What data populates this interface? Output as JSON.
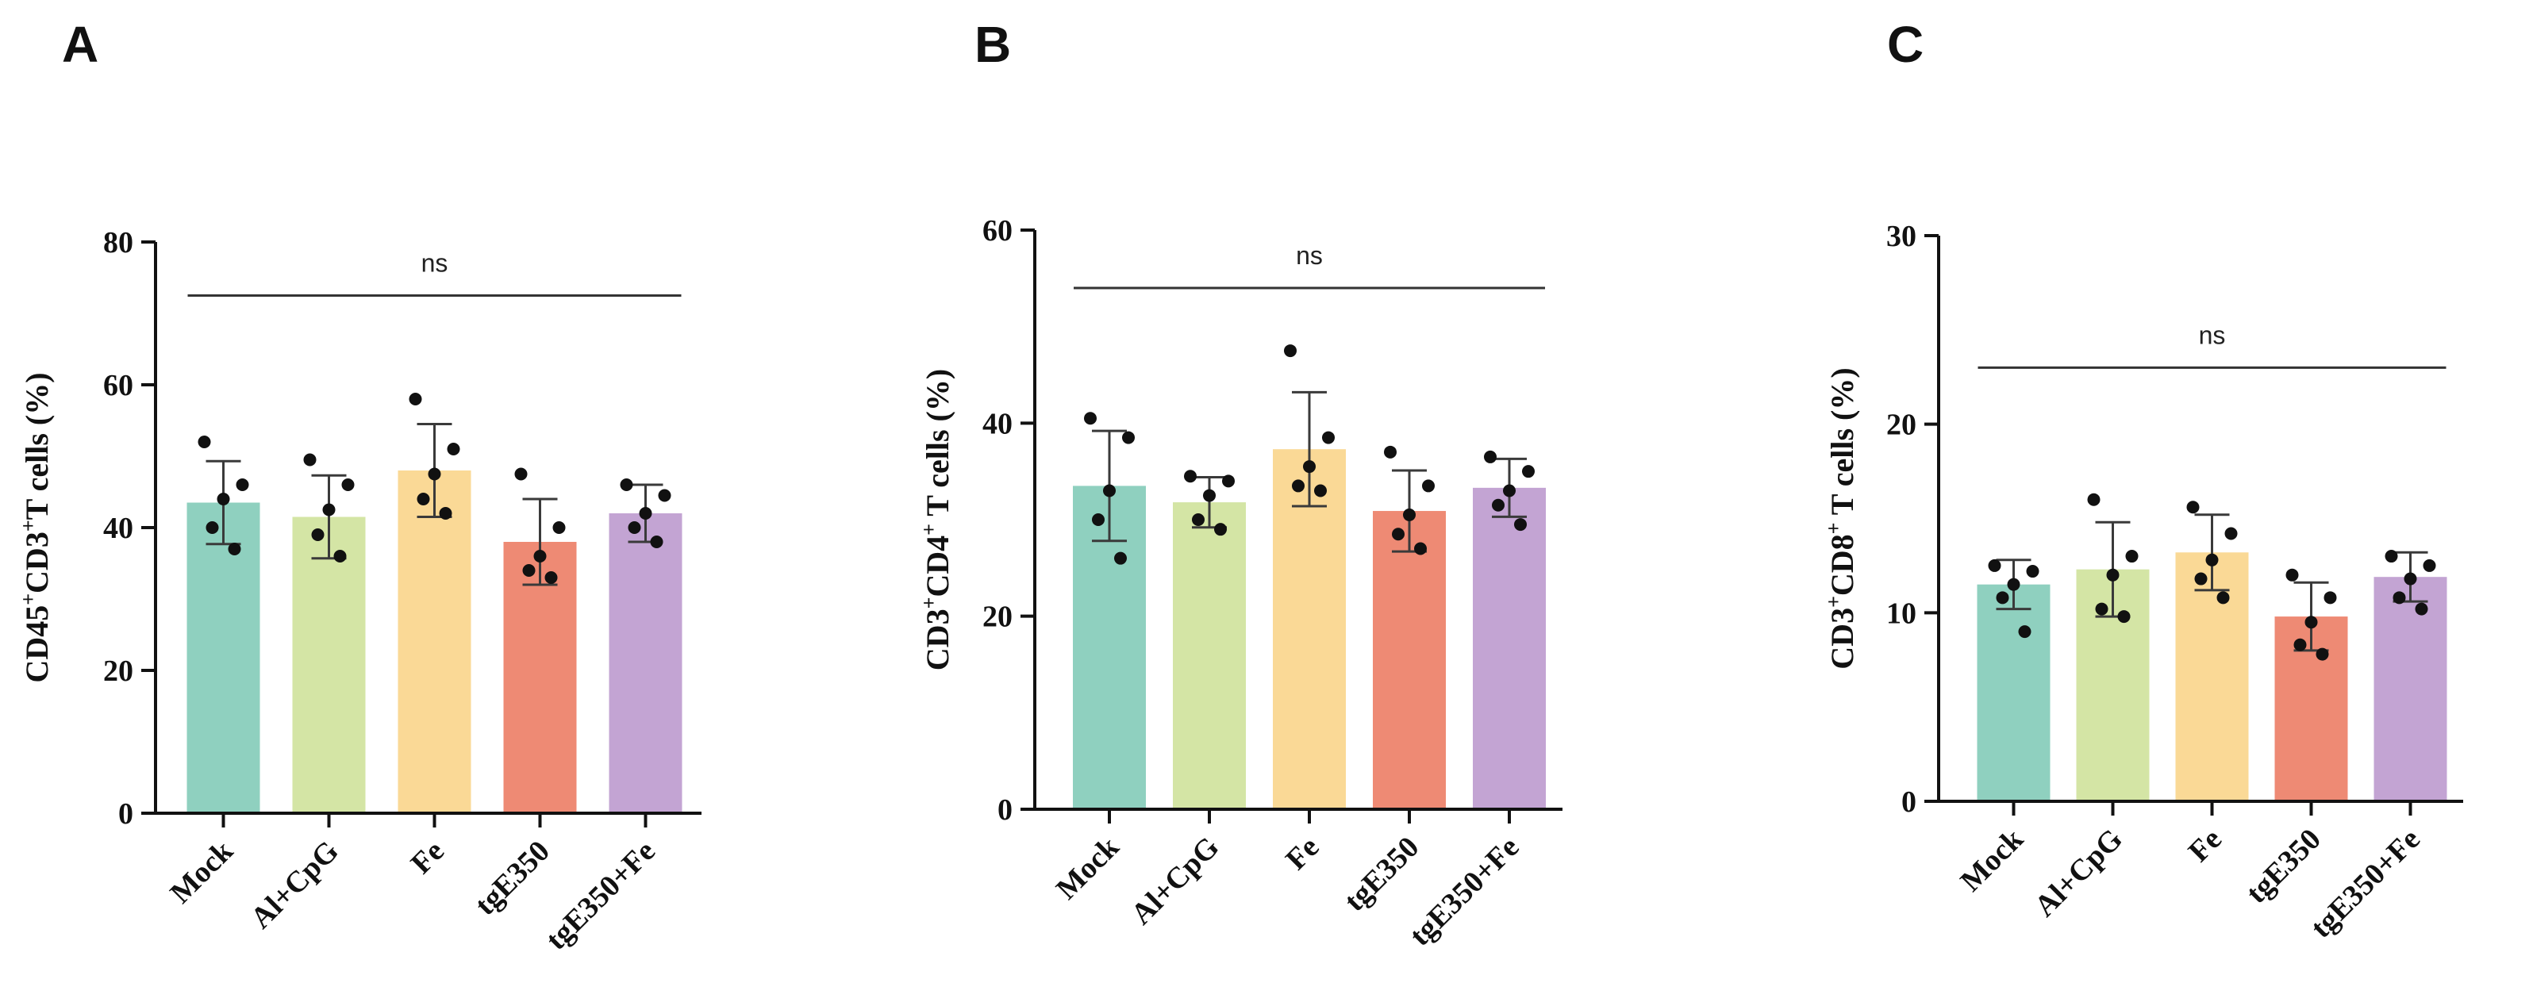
{
  "chart_data": [
    {
      "panel": "A",
      "type": "bar",
      "categories": [
        "Mock",
        "Al+CpG",
        "Fe",
        "tgE350",
        "tgE350+Fe"
      ],
      "colors": [
        "#8fd0bf",
        "#d4e5a5",
        "#fad996",
        "#ee8a74",
        "#c3a4d3"
      ],
      "ylabel_parts": [
        {
          "text": "CD45",
          "sup": false
        },
        {
          "text": "+",
          "sup": true
        },
        {
          "text": "CD3",
          "sup": false
        },
        {
          "text": "+",
          "sup": true
        },
        {
          "text": "T cells (%)",
          "sup": false
        }
      ],
      "ylim": [
        0,
        80
      ],
      "yticks": [
        0,
        20,
        40,
        60,
        80
      ],
      "values": [
        43.5,
        41.5,
        48,
        38,
        42
      ],
      "sd": [
        5.8,
        5.8,
        6.5,
        6,
        4
      ],
      "points": [
        [
          52,
          46,
          44,
          40,
          37
        ],
        [
          49.5,
          46,
          42.5,
          39,
          36
        ],
        [
          58,
          51,
          47.5,
          44,
          42
        ],
        [
          47.5,
          40,
          36,
          34,
          33
        ],
        [
          46,
          44.5,
          42,
          40,
          38
        ]
      ],
      "significance": {
        "label": "ns",
        "from": 0,
        "to": 4,
        "y": 72.5
      }
    },
    {
      "panel": "B",
      "type": "bar",
      "categories": [
        "Mock",
        "Al+CpG",
        "Fe",
        "tgE350",
        "tgE350+Fe"
      ],
      "colors": [
        "#8fd0bf",
        "#d4e5a5",
        "#fad996",
        "#ee8a74",
        "#c3a4d3"
      ],
      "ylabel_parts": [
        {
          "text": "CD3",
          "sup": false
        },
        {
          "text": "+",
          "sup": true
        },
        {
          "text": "CD4",
          "sup": false
        },
        {
          "text": "+",
          "sup": true
        },
        {
          "text": " T cells (%)",
          "sup": false
        }
      ],
      "ylim": [
        0,
        60
      ],
      "yticks": [
        0,
        20,
        40,
        60
      ],
      "values": [
        33.5,
        31.8,
        37.3,
        30.9,
        33.3
      ],
      "sd": [
        5.7,
        2.6,
        5.9,
        4.2,
        3.0
      ],
      "points": [
        [
          40.5,
          38.5,
          33,
          30,
          26
        ],
        [
          34.5,
          34,
          32.5,
          30,
          29
        ],
        [
          47.5,
          38.5,
          35.5,
          33.5,
          33
        ],
        [
          37,
          33.5,
          30.5,
          28.5,
          27
        ],
        [
          36.5,
          35,
          33,
          31.5,
          29.5
        ]
      ],
      "significance": {
        "label": "ns",
        "from": 0,
        "to": 4,
        "y": 54
      }
    },
    {
      "panel": "C",
      "type": "bar",
      "categories": [
        "Mock",
        "Al+CpG",
        "Fe",
        "tgE350",
        "tgE350+Fe"
      ],
      "colors": [
        "#8fd0bf",
        "#d4e5a5",
        "#fad996",
        "#ee8a74",
        "#c3a4d3"
      ],
      "ylabel_parts": [
        {
          "text": "CD3",
          "sup": false
        },
        {
          "text": "+",
          "sup": true
        },
        {
          "text": "CD8",
          "sup": false
        },
        {
          "text": "+",
          "sup": true
        },
        {
          "text": " T cells (%)",
          "sup": false
        }
      ],
      "ylim": [
        0,
        30
      ],
      "yticks": [
        0,
        10,
        20,
        30
      ],
      "values": [
        11.5,
        12.3,
        13.2,
        9.8,
        11.9
      ],
      "sd": [
        1.3,
        2.5,
        2.0,
        1.8,
        1.3
      ],
      "points": [
        [
          12.5,
          12.2,
          11.5,
          10.8,
          9
        ],
        [
          16,
          13,
          12,
          10.2,
          9.8
        ],
        [
          15.6,
          14.2,
          12.8,
          11.8,
          10.8
        ],
        [
          12,
          10.8,
          9.5,
          8.3,
          7.8
        ],
        [
          13,
          12.5,
          11.8,
          10.8,
          10.2
        ]
      ],
      "significance": {
        "label": "ns",
        "from": 0,
        "to": 4,
        "y": 23
      }
    }
  ]
}
